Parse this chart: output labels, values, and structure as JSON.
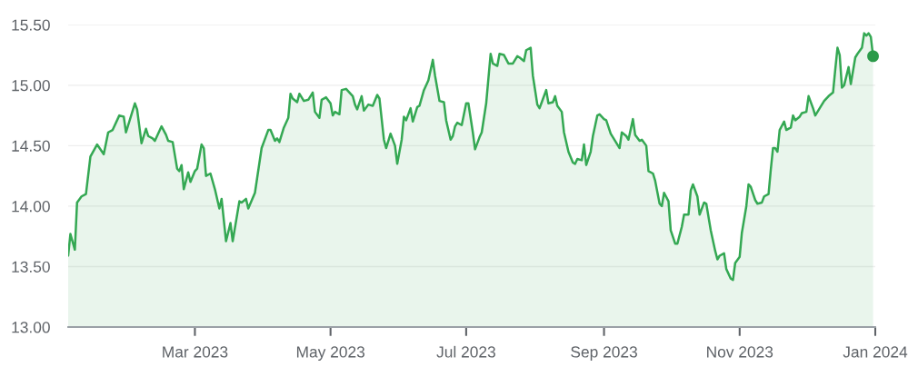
{
  "chart_data": {
    "type": "area",
    "x": [
      "2023-01-03",
      "2023-01-04",
      "2023-01-06",
      "2023-01-07",
      "2023-01-09",
      "2023-01-11",
      "2023-01-13",
      "2023-01-16",
      "2023-01-19",
      "2023-01-21",
      "2023-01-23",
      "2023-01-26",
      "2023-01-28",
      "2023-01-29",
      "2023-02-02",
      "2023-02-03",
      "2023-02-05",
      "2023-02-07",
      "2023-02-08",
      "2023-02-10",
      "2023-02-11",
      "2023-02-14",
      "2023-02-16",
      "2023-02-17",
      "2023-02-19",
      "2023-02-21",
      "2023-02-22",
      "2023-02-23",
      "2023-02-24",
      "2023-02-26",
      "2023-02-27",
      "2023-03-01",
      "2023-03-02",
      "2023-03-04",
      "2023-03-05",
      "2023-03-06",
      "2023-03-08",
      "2023-03-10",
      "2023-03-12",
      "2023-03-13",
      "2023-03-15",
      "2023-03-17",
      "2023-03-18",
      "2023-03-21",
      "2023-03-22",
      "2023-03-24",
      "2023-03-25",
      "2023-03-28",
      "2023-03-31",
      "2023-04-01",
      "2023-04-03",
      "2023-04-04",
      "2023-04-06",
      "2023-04-07",
      "2023-04-08",
      "2023-04-10",
      "2023-04-12",
      "2023-04-13",
      "2023-04-14",
      "2023-04-16",
      "2023-04-17",
      "2023-04-19",
      "2023-04-21",
      "2023-04-23",
      "2023-04-24",
      "2023-04-26",
      "2023-04-27",
      "2023-04-29",
      "2023-05-01",
      "2023-05-02",
      "2023-05-03",
      "2023-05-05",
      "2023-05-06",
      "2023-05-08",
      "2023-05-11",
      "2023-05-12",
      "2023-05-13",
      "2023-05-15",
      "2023-05-16",
      "2023-05-18",
      "2023-05-20",
      "2023-05-22",
      "2023-05-23",
      "2023-05-25",
      "2023-05-26",
      "2023-05-28",
      "2023-05-30",
      "2023-05-31",
      "2023-06-02",
      "2023-06-03",
      "2023-06-04",
      "2023-06-06",
      "2023-06-07",
      "2023-06-09",
      "2023-06-10",
      "2023-06-12",
      "2023-06-14",
      "2023-06-16",
      "2023-06-17",
      "2023-06-19",
      "2023-06-21",
      "2023-06-22",
      "2023-06-24",
      "2023-06-25",
      "2023-06-26",
      "2023-06-27",
      "2023-06-29",
      "2023-07-01",
      "2023-07-02",
      "2023-07-04",
      "2023-07-05",
      "2023-07-07",
      "2023-07-08",
      "2023-07-10",
      "2023-07-12",
      "2023-07-13",
      "2023-07-15",
      "2023-07-16",
      "2023-07-18",
      "2023-07-20",
      "2023-07-22",
      "2023-07-24",
      "2023-07-25",
      "2023-07-27",
      "2023-07-28",
      "2023-07-30",
      "2023-07-31",
      "2023-08-02",
      "2023-08-03",
      "2023-08-04",
      "2023-08-06",
      "2023-08-07",
      "2023-08-09",
      "2023-08-10",
      "2023-08-11",
      "2023-08-13",
      "2023-08-14",
      "2023-08-16",
      "2023-08-18",
      "2023-08-19",
      "2023-08-20",
      "2023-08-22",
      "2023-08-23",
      "2023-08-24",
      "2023-08-26",
      "2023-08-27",
      "2023-08-29",
      "2023-08-30",
      "2023-09-01",
      "2023-09-02",
      "2023-09-04",
      "2023-09-06",
      "2023-09-08",
      "2023-09-09",
      "2023-09-11",
      "2023-09-12",
      "2023-09-14",
      "2023-09-15",
      "2023-09-17",
      "2023-09-18",
      "2023-09-20",
      "2023-09-21",
      "2023-09-23",
      "2023-09-24",
      "2023-09-26",
      "2023-09-27",
      "2023-09-28",
      "2023-09-30",
      "2023-10-01",
      "2023-10-03",
      "2023-10-04",
      "2023-10-06",
      "2023-10-07",
      "2023-10-09",
      "2023-10-10",
      "2023-10-11",
      "2023-10-13",
      "2023-10-14",
      "2023-10-16",
      "2023-10-17",
      "2023-10-19",
      "2023-10-21",
      "2023-10-22",
      "2023-10-23",
      "2023-10-25",
      "2023-10-26",
      "2023-10-28",
      "2023-10-29",
      "2023-10-30",
      "2023-11-01",
      "2023-11-02",
      "2023-11-04",
      "2023-11-05",
      "2023-11-06",
      "2023-11-08",
      "2023-11-09",
      "2023-11-11",
      "2023-11-12",
      "2023-11-14",
      "2023-11-15",
      "2023-11-16",
      "2023-11-17",
      "2023-11-18",
      "2023-11-19",
      "2023-11-21",
      "2023-11-22",
      "2023-11-24",
      "2023-11-25",
      "2023-11-26",
      "2023-11-28",
      "2023-11-29",
      "2023-12-01",
      "2023-12-02",
      "2023-12-04",
      "2023-12-05",
      "2023-12-07",
      "2023-12-09",
      "2023-12-11",
      "2023-12-13",
      "2023-12-14",
      "2023-12-15",
      "2023-12-16",
      "2023-12-17",
      "2023-12-18",
      "2023-12-20",
      "2023-12-21",
      "2023-12-23",
      "2023-12-24",
      "2023-12-26",
      "2023-12-27",
      "2023-12-28",
      "2023-12-29",
      "2023-12-30",
      "2023-12-31"
    ],
    "series": [
      {
        "color": "#34a853",
        "values": [
          13.59,
          13.77,
          13.64,
          14.03,
          14.08,
          14.1,
          14.41,
          14.51,
          14.43,
          14.61,
          14.63,
          14.75,
          14.74,
          14.61,
          14.85,
          14.8,
          14.52,
          14.64,
          14.58,
          14.56,
          14.54,
          14.66,
          14.59,
          14.54,
          14.53,
          14.31,
          14.29,
          14.34,
          14.14,
          14.28,
          14.2,
          14.29,
          14.31,
          14.51,
          14.48,
          14.25,
          14.27,
          14.14,
          13.98,
          14.06,
          13.71,
          13.86,
          13.71,
          14.04,
          14.03,
          14.06,
          13.98,
          14.11,
          14.48,
          14.53,
          14.63,
          14.63,
          14.54,
          14.56,
          14.53,
          14.65,
          14.73,
          14.93,
          14.89,
          14.86,
          14.93,
          14.87,
          14.88,
          14.94,
          14.78,
          14.73,
          14.88,
          14.9,
          14.85,
          14.75,
          14.78,
          14.76,
          14.96,
          14.97,
          14.91,
          14.84,
          14.8,
          14.91,
          14.79,
          14.84,
          14.83,
          14.92,
          14.89,
          14.55,
          14.48,
          14.6,
          14.5,
          14.35,
          14.55,
          14.74,
          14.71,
          14.81,
          14.7,
          14.82,
          14.83,
          14.96,
          15.04,
          15.21,
          15.08,
          14.87,
          14.86,
          14.71,
          14.55,
          14.58,
          14.66,
          14.69,
          14.67,
          14.85,
          14.85,
          14.61,
          14.47,
          14.57,
          14.61,
          14.85,
          15.26,
          15.18,
          15.16,
          15.26,
          15.25,
          15.18,
          15.18,
          15.24,
          15.23,
          15.2,
          15.29,
          15.31,
          15.08,
          14.84,
          14.81,
          14.86,
          14.96,
          14.85,
          14.86,
          14.91,
          14.83,
          14.78,
          14.61,
          14.45,
          14.36,
          14.35,
          14.39,
          14.38,
          14.51,
          14.34,
          14.45,
          14.58,
          14.75,
          14.76,
          14.72,
          14.71,
          14.6,
          14.54,
          14.48,
          14.61,
          14.58,
          14.55,
          14.72,
          14.59,
          14.54,
          14.55,
          14.5,
          14.29,
          14.27,
          14.21,
          14.02,
          14.0,
          14.11,
          14.04,
          13.8,
          13.69,
          13.69,
          13.83,
          13.93,
          13.93,
          14.13,
          14.18,
          14.08,
          13.93,
          14.03,
          14.02,
          13.8,
          13.63,
          13.56,
          13.59,
          13.61,
          13.48,
          13.4,
          13.39,
          13.53,
          13.58,
          13.78,
          14.0,
          14.18,
          14.16,
          14.05,
          14.02,
          14.03,
          14.08,
          14.1,
          14.3,
          14.48,
          14.48,
          14.45,
          14.63,
          14.7,
          14.63,
          14.65,
          14.75,
          14.71,
          14.74,
          14.77,
          14.78,
          14.91,
          14.81,
          14.75,
          14.81,
          14.87,
          14.91,
          14.94,
          15.13,
          15.31,
          15.25,
          14.98,
          15.0,
          15.15,
          15.01,
          15.23,
          15.26,
          15.31,
          15.43,
          15.41,
          15.43,
          15.4,
          15.24
        ]
      },
      {
        "type": "scatter",
        "color": "#2b9a4a",
        "marker": "circle",
        "x": [
          "2023-12-31"
        ],
        "values": [
          15.24
        ]
      }
    ],
    "xlim": [
      "2023-01-03",
      "2024-01-01"
    ],
    "xticks": [
      {
        "value": "2023-03-01",
        "label": "Mar 2023"
      },
      {
        "value": "2023-05-01",
        "label": "May 2023"
      },
      {
        "value": "2023-07-01",
        "label": "Jul 2023"
      },
      {
        "value": "2023-09-01",
        "label": "Sep 2023"
      },
      {
        "value": "2023-11-01",
        "label": "Nov 2023"
      },
      {
        "value": "2024-01-01",
        "label": "Jan 2024"
      }
    ],
    "ylim": [
      13,
      15.5
    ],
    "yticks": [
      {
        "value": 13,
        "label": "13.00"
      },
      {
        "value": 13.5,
        "label": "13.50"
      },
      {
        "value": 14,
        "label": "14.00"
      },
      {
        "value": 14.5,
        "label": "14.50"
      },
      {
        "value": 15,
        "label": "15.00"
      },
      {
        "value": 15.5,
        "label": "15.50"
      }
    ],
    "grid": "y"
  }
}
